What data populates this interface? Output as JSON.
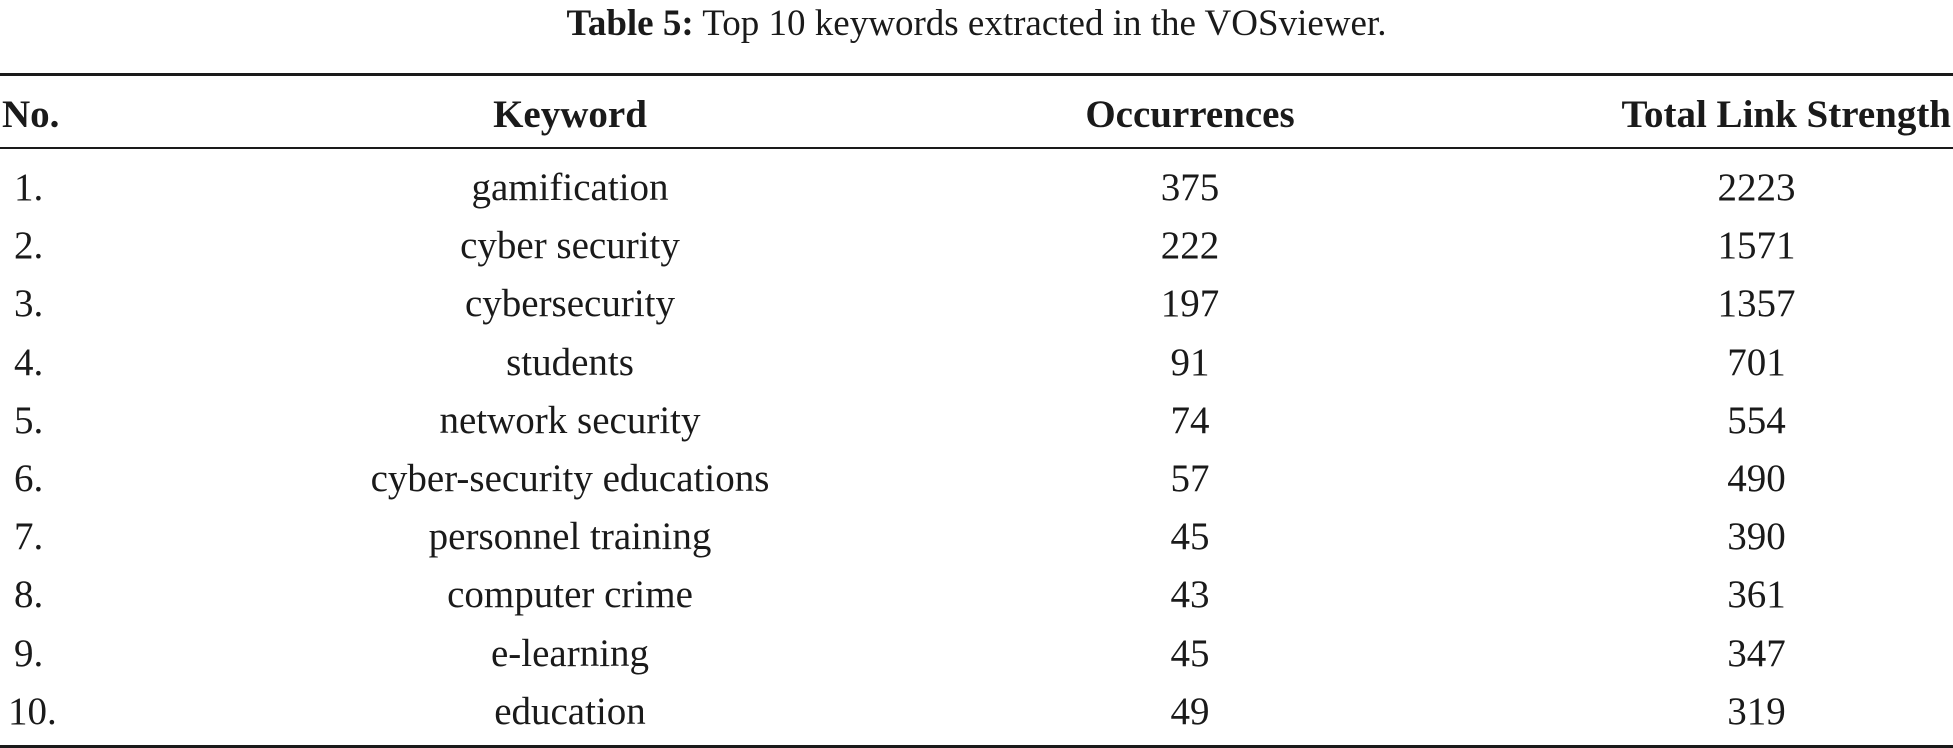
{
  "caption": {
    "label": "Table 5:",
    "text": "Top 10 keywords extracted in the VOSviewer."
  },
  "table": {
    "headers": {
      "no": "No.",
      "keyword": "Keyword",
      "occurrences": "Occurrences",
      "total_link_strength": "Total Link Strength"
    },
    "rows": [
      {
        "no": "1.",
        "keyword": "gamification",
        "occurrences": "375",
        "total_link_strength": "2223"
      },
      {
        "no": "2.",
        "keyword": "cyber security",
        "occurrences": "222",
        "total_link_strength": "1571"
      },
      {
        "no": "3.",
        "keyword": "cybersecurity",
        "occurrences": "197",
        "total_link_strength": "1357"
      },
      {
        "no": "4.",
        "keyword": "students",
        "occurrences": "91",
        "total_link_strength": "701"
      },
      {
        "no": "5.",
        "keyword": "network security",
        "occurrences": "74",
        "total_link_strength": "554"
      },
      {
        "no": "6.",
        "keyword": "cyber-security educations",
        "occurrences": "57",
        "total_link_strength": "490"
      },
      {
        "no": "7.",
        "keyword": "personnel training",
        "occurrences": "45",
        "total_link_strength": "390"
      },
      {
        "no": "8.",
        "keyword": "computer crime",
        "occurrences": "43",
        "total_link_strength": "361"
      },
      {
        "no": "9.",
        "keyword": "e-learning",
        "occurrences": "45",
        "total_link_strength": "347"
      },
      {
        "no": "10.",
        "keyword": "education",
        "occurrences": "49",
        "total_link_strength": "319"
      }
    ]
  }
}
